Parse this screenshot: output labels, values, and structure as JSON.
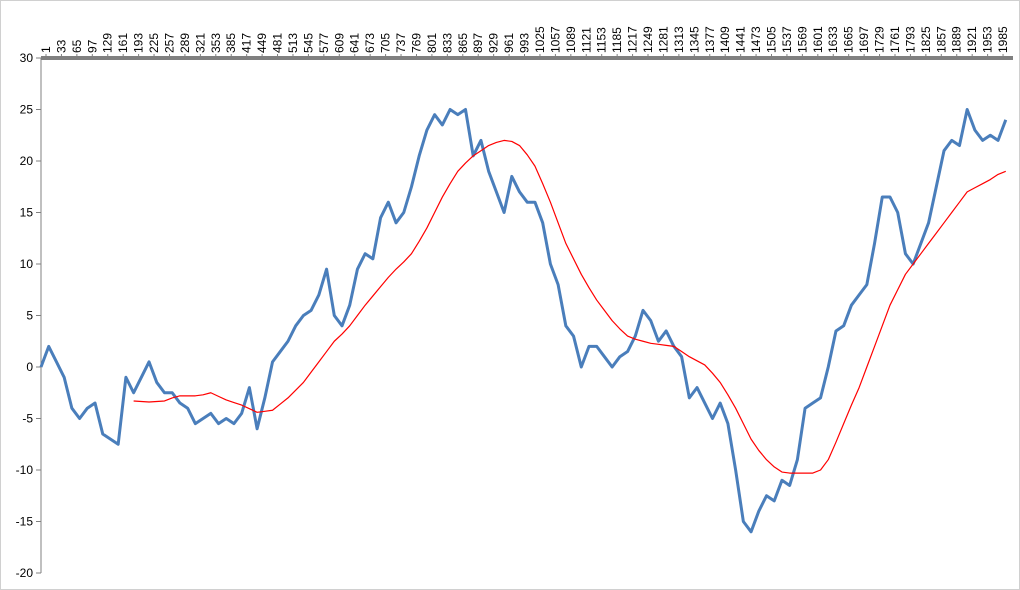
{
  "chart_data": {
    "type": "line",
    "x": [
      1,
      17,
      33,
      49,
      65,
      81,
      97,
      113,
      129,
      145,
      161,
      177,
      193,
      209,
      225,
      241,
      257,
      273,
      289,
      305,
      321,
      337,
      353,
      369,
      385,
      401,
      417,
      433,
      449,
      465,
      481,
      497,
      513,
      529,
      545,
      561,
      577,
      593,
      609,
      625,
      641,
      657,
      673,
      689,
      705,
      721,
      737,
      753,
      769,
      785,
      801,
      817,
      833,
      849,
      865,
      881,
      897,
      913,
      929,
      945,
      961,
      977,
      993,
      1009,
      1025,
      1041,
      1057,
      1073,
      1089,
      1105,
      1121,
      1137,
      1153,
      1169,
      1185,
      1201,
      1217,
      1233,
      1249,
      1265,
      1281,
      1297,
      1313,
      1329,
      1345,
      1361,
      1377,
      1393,
      1409,
      1425,
      1441,
      1457,
      1473,
      1489,
      1505,
      1521,
      1537,
      1553,
      1569,
      1585,
      1601,
      1617,
      1633,
      1649,
      1665,
      1681,
      1697,
      1713,
      1729,
      1745,
      1761,
      1777,
      1793,
      1809,
      1825,
      1841,
      1857,
      1873,
      1889,
      1905,
      1921,
      1937,
      1953,
      1969,
      1985,
      2001
    ],
    "series": [
      {
        "color": "#4a7ebb",
        "values": [
          0,
          2,
          0.5,
          -1,
          -4,
          -5,
          -4,
          -3.5,
          -6.5,
          -7,
          -7.5,
          -1,
          -2.5,
          -1,
          0.5,
          -1.5,
          -2.5,
          -2.5,
          -3.5,
          -4,
          -5.5,
          -5,
          -4.5,
          -5.5,
          -5,
          -5.5,
          -4.5,
          -2,
          -6,
          -3,
          0.5,
          1.5,
          2.5,
          4,
          5,
          5.5,
          7,
          9.5,
          5,
          4,
          6,
          9.5,
          11,
          10.5,
          14.5,
          16,
          14,
          15,
          17.5,
          20.5,
          23,
          24.5,
          23.5,
          25,
          24.5,
          25,
          20.5,
          22,
          19,
          17,
          15,
          18.5,
          17,
          16,
          16,
          14,
          10,
          8,
          4,
          3,
          0,
          2,
          2,
          1,
          0,
          1,
          1.5,
          3,
          5.5,
          4.5,
          2.5,
          3.5,
          2,
          1,
          -3,
          -2,
          -3.5,
          -5,
          -3.5,
          -5.5,
          -10,
          -15,
          -16,
          -14,
          -12.5,
          -13,
          -11,
          -11.5,
          -9,
          -4,
          -3.5,
          -3,
          0,
          3.5,
          4,
          6,
          7,
          8,
          12,
          16.5,
          16.5,
          15,
          11,
          10,
          12,
          14,
          17.5,
          21,
          22,
          21.5,
          25,
          23,
          22,
          22.5,
          22,
          24
        ]
      },
      {
        "color": "#ff0000",
        "values": [
          null,
          null,
          null,
          null,
          null,
          null,
          null,
          null,
          null,
          null,
          null,
          null,
          -3.3,
          -3.35,
          -3.4,
          -3.35,
          -3.3,
          -3.0,
          -2.8,
          -2.8,
          -2.8,
          -2.7,
          -2.5,
          -2.85,
          -3.2,
          -3.45,
          -3.7,
          -4.05,
          -4.4,
          -4.3,
          -4.2,
          -3.6,
          -3,
          -2.25,
          -1.5,
          -0.5,
          0.5,
          1.5,
          2.5,
          3.2,
          4,
          5,
          6,
          6.9,
          7.8,
          8.7,
          9.5,
          10.2,
          11,
          12.2,
          13.5,
          15,
          16.5,
          17.8,
          19,
          19.8,
          20.5,
          21,
          21.5,
          21.8,
          22,
          21.9,
          21.5,
          20.6,
          19.5,
          17.8,
          16,
          14,
          12,
          10.5,
          9,
          7.7,
          6.5,
          5.5,
          4.5,
          3.7,
          3,
          2.7,
          2.5,
          2.3,
          2.2,
          2.1,
          2,
          1.5,
          1,
          0.6,
          0.2,
          -0.6,
          -1.5,
          -2.7,
          -4,
          -5.5,
          -7,
          -8.1,
          -9,
          -9.7,
          -10.2,
          -10.3,
          -10.3,
          -10.3,
          -10.3,
          -10,
          -9,
          -7.3,
          -5.5,
          -3.7,
          -2,
          0,
          2,
          4,
          6,
          7.5,
          9,
          10,
          11,
          12,
          13,
          14,
          15,
          16,
          17,
          17.4,
          17.8,
          18.2,
          18.7,
          19
        ]
      }
    ],
    "xlim": [
      1,
      2016
    ],
    "xticks": [
      1,
      33,
      65,
      97,
      129,
      161,
      193,
      225,
      257,
      289,
      321,
      353,
      385,
      417,
      449,
      481,
      513,
      545,
      577,
      609,
      641,
      673,
      705,
      737,
      769,
      801,
      833,
      865,
      897,
      929,
      961,
      993,
      1025,
      1057,
      1089,
      1121,
      1153,
      1185,
      1217,
      1249,
      1281,
      1313,
      1345,
      1377,
      1409,
      1441,
      1473,
      1505,
      1537,
      1569,
      1601,
      1633,
      1665,
      1697,
      1729,
      1761,
      1793,
      1825,
      1857,
      1889,
      1921,
      1953,
      1985
    ],
    "ylim": [
      -20,
      30
    ],
    "yticks": [
      -20,
      -15,
      -10,
      -5,
      0,
      5,
      10,
      15,
      20,
      25,
      30
    ]
  }
}
